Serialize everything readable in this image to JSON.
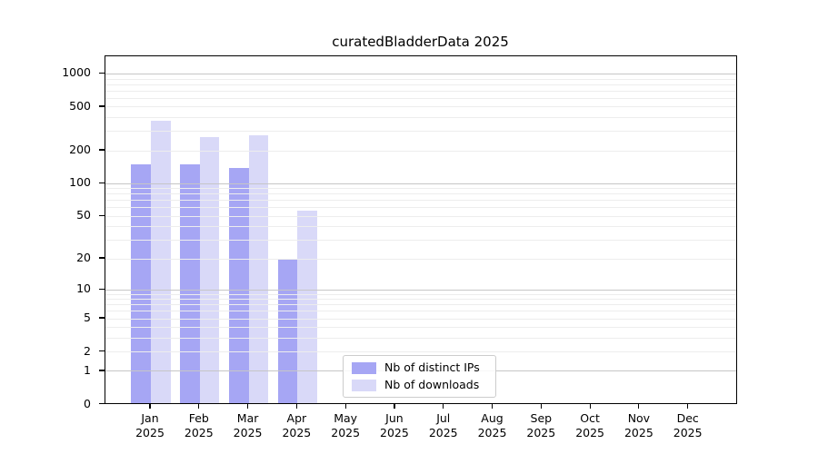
{
  "chart_data": {
    "type": "bar",
    "title": "curatedBladderData 2025",
    "categories": [
      "Jan",
      "Feb",
      "Mar",
      "Apr",
      "May",
      "Jun",
      "Jul",
      "Aug",
      "Sep",
      "Oct",
      "Nov",
      "Dec"
    ],
    "category_year_label": "2025",
    "series": [
      {
        "name": "Nb of distinct IPs",
        "color": "#a6a6f4",
        "values": [
          145,
          146,
          133,
          19,
          0,
          0,
          0,
          0,
          0,
          0,
          0,
          0
        ]
      },
      {
        "name": "Nb of downloads",
        "color": "#d9d9f8",
        "values": [
          360,
          256,
          266,
          54,
          0,
          0,
          0,
          0,
          0,
          0,
          0,
          0
        ]
      }
    ],
    "yscale": "log1p",
    "yticks": [
      0,
      1,
      2,
      5,
      10,
      20,
      50,
      100,
      200,
      500,
      1000
    ],
    "ylim": [
      0,
      1460
    ],
    "xlabel": "",
    "ylabel": "",
    "grid": true,
    "grid_major_at": [
      1,
      10,
      100,
      1000
    ],
    "grid_major_color": "#c6c6c6",
    "grid_minor_color": "#ededed",
    "axis_color": "#000000",
    "legend_position": "inside-bottom-center"
  }
}
